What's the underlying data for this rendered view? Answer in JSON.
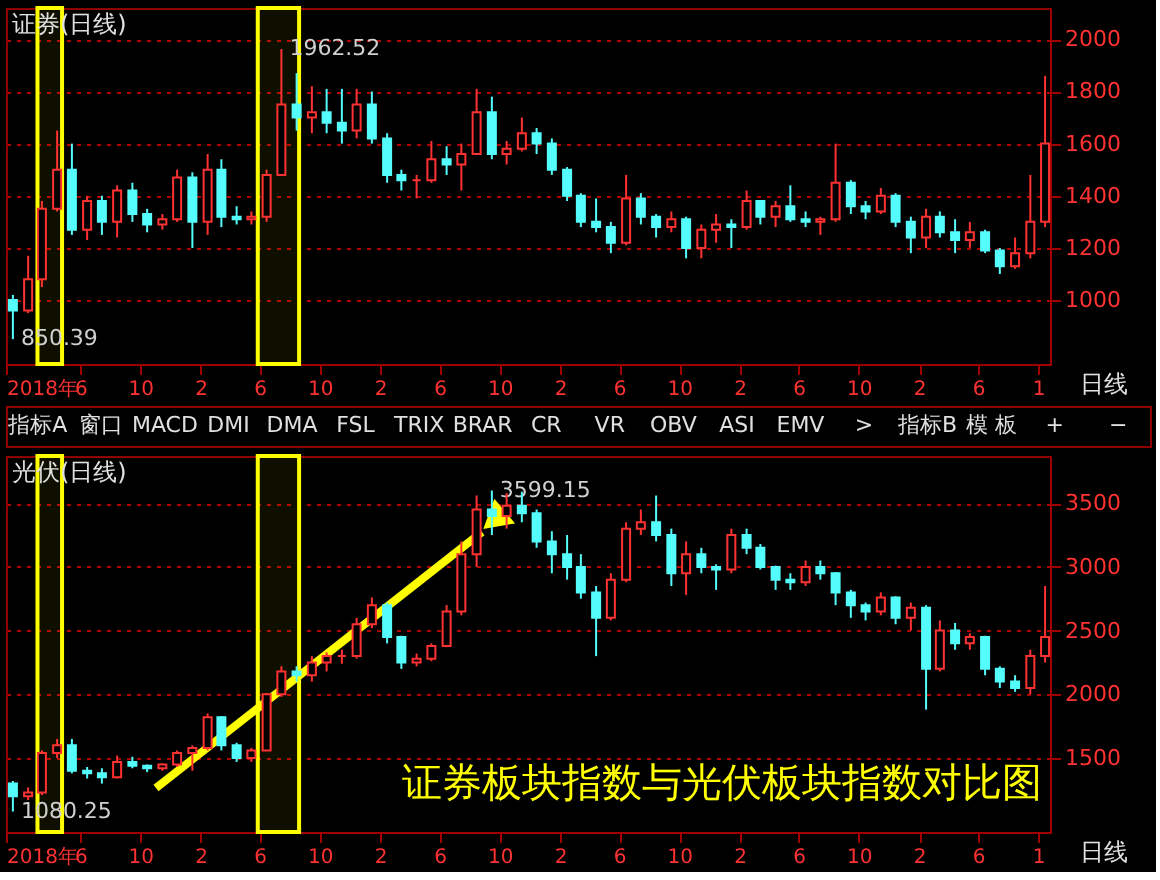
{
  "chart_data": [
    {
      "type": "candlestick",
      "title": "证券(日线)",
      "x": [
        "2018-01-15",
        "2018-02-15",
        "2018-03-15",
        "2018-04-15",
        "2018-05-15",
        "2018-06-15",
        "2018-07-15",
        "2018-08-15",
        "2018-09-15",
        "2018-10-15",
        "2018-11-15",
        "2018-12-15",
        "2019-01-15",
        "2019-02-15",
        "2019-03-15",
        "2019-04-15",
        "2019-05-15",
        "2019-06-15",
        "2019-07-15",
        "2019-08-15",
        "2019-09-15",
        "2019-10-15",
        "2019-11-15",
        "2019-12-15",
        "2020-01-15",
        "2020-02-15",
        "2020-03-15",
        "2020-04-15",
        "2020-05-15",
        "2020-06-15",
        "2020-07-15",
        "2020-08-15",
        "2020-09-15",
        "2020-10-15",
        "2020-11-15",
        "2020-12-15",
        "2021-01-15",
        "2021-02-15",
        "2021-03-15",
        "2021-04-15",
        "2021-05-15",
        "2021-06-15",
        "2021-07-15",
        "2021-08-15",
        "2021-09-15",
        "2021-10-15",
        "2021-11-15",
        "2021-12-15",
        "2022-01-15",
        "2022-02-15",
        "2022-03-15",
        "2022-04-15",
        "2022-05-15",
        "2022-06-15",
        "2022-07-15",
        "2022-08-15",
        "2022-09-15",
        "2022-10-15",
        "2022-11-15",
        "2022-12-15",
        "2023-01-15",
        "2023-02-15",
        "2023-03-15",
        "2023-04-15",
        "2023-05-15",
        "2023-06-15",
        "2023-07-15",
        "2023-08-15",
        "2023-09-15",
        "2023-10-15"
      ],
      "ohlc": [
        [
          1000,
          1020,
          850.39,
          960
        ],
        [
          960,
          1170,
          950,
          1080
        ],
        [
          1080,
          1380,
          1050,
          1350
        ],
        [
          1350,
          1650,
          1340,
          1500
        ],
        [
          1500,
          1600,
          1250,
          1270
        ],
        [
          1270,
          1400,
          1230,
          1380
        ],
        [
          1380,
          1400,
          1250,
          1300
        ],
        [
          1300,
          1440,
          1240,
          1420
        ],
        [
          1420,
          1450,
          1300,
          1330
        ],
        [
          1330,
          1350,
          1260,
          1290
        ],
        [
          1290,
          1330,
          1270,
          1310
        ],
        [
          1310,
          1500,
          1300,
          1470
        ],
        [
          1470,
          1490,
          1200,
          1300
        ],
        [
          1300,
          1560,
          1250,
          1500
        ],
        [
          1500,
          1540,
          1280,
          1320
        ],
        [
          1320,
          1360,
          1290,
          1310
        ],
        [
          1310,
          1340,
          1290,
          1320
        ],
        [
          1320,
          1500,
          1300,
          1480
        ],
        [
          1480,
          1962.52,
          1480,
          1750
        ],
        [
          1750,
          1870,
          1650,
          1700
        ],
        [
          1700,
          1820,
          1640,
          1720
        ],
        [
          1720,
          1810,
          1640,
          1680
        ],
        [
          1680,
          1810,
          1600,
          1650
        ],
        [
          1650,
          1810,
          1620,
          1750
        ],
        [
          1750,
          1800,
          1600,
          1620
        ],
        [
          1620,
          1640,
          1450,
          1480
        ],
        [
          1480,
          1500,
          1420,
          1460
        ],
        [
          1460,
          1480,
          1390,
          1460
        ],
        [
          1460,
          1610,
          1450,
          1540
        ],
        [
          1540,
          1590,
          1480,
          1520
        ],
        [
          1520,
          1600,
          1420,
          1560
        ],
        [
          1560,
          1810,
          1560,
          1720
        ],
        [
          1720,
          1780,
          1540,
          1560
        ],
        [
          1560,
          1610,
          1520,
          1580
        ],
        [
          1580,
          1700,
          1570,
          1640
        ],
        [
          1640,
          1660,
          1560,
          1600
        ],
        [
          1600,
          1620,
          1480,
          1500
        ],
        [
          1500,
          1510,
          1380,
          1400
        ],
        [
          1400,
          1410,
          1280,
          1300
        ],
        [
          1300,
          1390,
          1260,
          1280
        ],
        [
          1280,
          1300,
          1180,
          1220
        ],
        [
          1220,
          1480,
          1210,
          1390
        ],
        [
          1390,
          1410,
          1290,
          1320
        ],
        [
          1320,
          1330,
          1240,
          1280
        ],
        [
          1280,
          1340,
          1260,
          1310
        ],
        [
          1310,
          1320,
          1160,
          1200
        ],
        [
          1200,
          1290,
          1160,
          1270
        ],
        [
          1270,
          1330,
          1220,
          1290
        ],
        [
          1290,
          1310,
          1200,
          1280
        ],
        [
          1280,
          1420,
          1270,
          1380
        ],
        [
          1380,
          1380,
          1290,
          1320
        ],
        [
          1320,
          1380,
          1280,
          1360
        ],
        [
          1360,
          1440,
          1300,
          1310
        ],
        [
          1310,
          1340,
          1280,
          1300
        ],
        [
          1300,
          1320,
          1250,
          1310
        ],
        [
          1310,
          1600,
          1300,
          1450
        ],
        [
          1450,
          1460,
          1330,
          1360
        ],
        [
          1360,
          1380,
          1310,
          1340
        ],
        [
          1340,
          1430,
          1330,
          1400
        ],
        [
          1400,
          1410,
          1280,
          1300
        ],
        [
          1300,
          1320,
          1180,
          1240
        ],
        [
          1240,
          1350,
          1200,
          1320
        ],
        [
          1320,
          1340,
          1240,
          1260
        ],
        [
          1260,
          1310,
          1180,
          1230
        ],
        [
          1230,
          1300,
          1200,
          1260
        ],
        [
          1260,
          1270,
          1180,
          1190
        ],
        [
          1190,
          1200,
          1100,
          1130
        ],
        [
          1130,
          1240,
          1120,
          1180
        ],
        [
          1180,
          1480,
          1160,
          1300
        ],
        [
          1300,
          1860,
          1280,
          1600
        ]
      ],
      "xlim": [
        "2018-01-01",
        "2023-10-25"
      ],
      "xticks": [
        {
          "value": "2018-01-01",
          "label": "2018年"
        },
        {
          "value": "2018-06-01",
          "label": "6"
        },
        {
          "value": "2018-10-01",
          "label": "10"
        },
        {
          "value": "2019-02-01",
          "label": "2"
        },
        {
          "value": "2019-06-01",
          "label": "6"
        },
        {
          "value": "2019-10-01",
          "label": "10"
        },
        {
          "value": "2020-02-01",
          "label": "2"
        },
        {
          "value": "2020-06-01",
          "label": "6"
        },
        {
          "value": "2020-10-01",
          "label": "10"
        },
        {
          "value": "2021-02-01",
          "label": "2"
        },
        {
          "value": "2021-06-01",
          "label": "6"
        },
        {
          "value": "2021-10-01",
          "label": "10"
        },
        {
          "value": "2022-02-01",
          "label": "2"
        },
        {
          "value": "2022-06-01",
          "label": "6"
        },
        {
          "value": "2022-10-01",
          "label": "10"
        },
        {
          "value": "2023-02-01",
          "label": "2"
        },
        {
          "value": "2023-06-01",
          "label": "6"
        },
        {
          "value": "2023-10-01",
          "label": "1"
        }
      ],
      "ylim": [
        755,
        2120
      ],
      "yticks": [
        1000,
        1200,
        1400,
        1600,
        1800,
        2000
      ],
      "grid": "y",
      "bands": [
        {
          "axis": "x",
          "from": "2018-03-06",
          "to": "2018-04-25",
          "color": "#ffff00"
        },
        {
          "axis": "x",
          "from": "2019-05-28",
          "to": "2019-08-20",
          "color": "#ffff00"
        }
      ],
      "annotations": [
        {
          "text": "1962.52",
          "x": "2019-07-15",
          "y": 1962.52
        },
        {
          "text": "850.39",
          "x": "2018-01-15",
          "y": 850.39
        },
        "日线",
        "指标A",
        "窗口",
        "MACD",
        "DMI",
        "DMA",
        "FSL",
        "TRIX",
        "BRAR",
        "CR",
        "VR",
        "OBV",
        "ASI",
        "EMV",
        ">",
        "指标B",
        "模 板",
        "+",
        "−"
      ]
    },
    {
      "type": "candlestick",
      "title": "光伏(日线)",
      "x": [
        "2018-01-15",
        "2018-02-15",
        "2018-03-15",
        "2018-04-15",
        "2018-05-15",
        "2018-06-15",
        "2018-07-15",
        "2018-08-15",
        "2018-09-15",
        "2018-10-15",
        "2018-11-15",
        "2018-12-15",
        "2019-01-15",
        "2019-02-15",
        "2019-03-15",
        "2019-04-15",
        "2019-05-15",
        "2019-06-15",
        "2019-07-15",
        "2019-08-15",
        "2019-09-15",
        "2019-10-15",
        "2019-11-15",
        "2019-12-15",
        "2020-01-15",
        "2020-02-15",
        "2020-03-15",
        "2020-04-15",
        "2020-05-15",
        "2020-06-15",
        "2020-07-15",
        "2020-08-15",
        "2020-09-15",
        "2020-10-15",
        "2020-11-15",
        "2020-12-15",
        "2021-01-15",
        "2021-02-15",
        "2021-03-15",
        "2021-04-15",
        "2021-05-15",
        "2021-06-15",
        "2021-07-15",
        "2021-08-15",
        "2021-09-15",
        "2021-10-15",
        "2021-11-15",
        "2021-12-15",
        "2022-01-15",
        "2022-02-15",
        "2022-03-15",
        "2022-04-15",
        "2022-05-15",
        "2022-06-15",
        "2022-07-15",
        "2022-08-15",
        "2022-09-15",
        "2022-10-15",
        "2022-11-15",
        "2022-12-15",
        "2023-01-15",
        "2023-02-15",
        "2023-03-15",
        "2023-04-15",
        "2023-05-15",
        "2023-06-15",
        "2023-07-15",
        "2023-08-15",
        "2023-09-15",
        "2023-10-15"
      ],
      "ohlc": [
        [
          1300,
          1320,
          1080.25,
          1200
        ],
        [
          1200,
          1270,
          1170,
          1230
        ],
        [
          1230,
          1560,
          1210,
          1540
        ],
        [
          1540,
          1650,
          1500,
          1600
        ],
        [
          1600,
          1650,
          1380,
          1400
        ],
        [
          1400,
          1430,
          1340,
          1380
        ],
        [
          1380,
          1420,
          1300,
          1350
        ],
        [
          1350,
          1520,
          1340,
          1470
        ],
        [
          1470,
          1510,
          1420,
          1440
        ],
        [
          1440,
          1450,
          1390,
          1420
        ],
        [
          1420,
          1460,
          1400,
          1450
        ],
        [
          1450,
          1560,
          1430,
          1540
        ],
        [
          1540,
          1600,
          1400,
          1580
        ],
        [
          1580,
          1850,
          1560,
          1820
        ],
        [
          1820,
          1830,
          1560,
          1600
        ],
        [
          1600,
          1620,
          1470,
          1500
        ],
        [
          1500,
          1580,
          1470,
          1560
        ],
        [
          1560,
          2010,
          1560,
          2000
        ],
        [
          2000,
          2220,
          1980,
          2180
        ],
        [
          2180,
          2220,
          2100,
          2150
        ],
        [
          2150,
          2300,
          2100,
          2250
        ],
        [
          2250,
          2330,
          2180,
          2300
        ],
        [
          2300,
          2350,
          2240,
          2300
        ],
        [
          2300,
          2600,
          2280,
          2550
        ],
        [
          2550,
          2760,
          2520,
          2700
        ],
        [
          2700,
          2720,
          2400,
          2450
        ],
        [
          2450,
          2460,
          2200,
          2250
        ],
        [
          2250,
          2320,
          2220,
          2280
        ],
        [
          2280,
          2400,
          2260,
          2380
        ],
        [
          2380,
          2700,
          2370,
          2650
        ],
        [
          2650,
          3200,
          2620,
          3100
        ],
        [
          3100,
          3560,
          3000,
          3450
        ],
        [
          3450,
          3599.15,
          3250,
          3400
        ],
        [
          3400,
          3580,
          3300,
          3480
        ],
        [
          3480,
          3590,
          3350,
          3420
        ],
        [
          3420,
          3450,
          3150,
          3200
        ],
        [
          3200,
          3280,
          2950,
          3100
        ],
        [
          3100,
          3250,
          2900,
          3000
        ],
        [
          3000,
          3100,
          2750,
          2800
        ],
        [
          2800,
          2850,
          2300,
          2600
        ],
        [
          2600,
          2950,
          2580,
          2900
        ],
        [
          2900,
          3350,
          2880,
          3300
        ],
        [
          3300,
          3450,
          3250,
          3350
        ],
        [
          3350,
          3560,
          3200,
          3250
        ],
        [
          3250,
          3300,
          2850,
          2950
        ],
        [
          2950,
          3200,
          2780,
          3100
        ],
        [
          3100,
          3150,
          2950,
          3000
        ],
        [
          3000,
          3020,
          2820,
          2980
        ],
        [
          2980,
          3300,
          2950,
          3250
        ],
        [
          3250,
          3300,
          3100,
          3150
        ],
        [
          3150,
          3180,
          2980,
          3000
        ],
        [
          3000,
          3010,
          2820,
          2900
        ],
        [
          2900,
          2950,
          2820,
          2880
        ],
        [
          2880,
          3050,
          2850,
          3000
        ],
        [
          3000,
          3050,
          2900,
          2950
        ],
        [
          2950,
          2960,
          2700,
          2800
        ],
        [
          2800,
          2820,
          2600,
          2700
        ],
        [
          2700,
          2720,
          2580,
          2650
        ],
        [
          2650,
          2800,
          2620,
          2760
        ],
        [
          2760,
          2770,
          2550,
          2600
        ],
        [
          2600,
          2720,
          2500,
          2680
        ],
        [
          2680,
          2700,
          1880,
          2200
        ],
        [
          2200,
          2580,
          2180,
          2500
        ],
        [
          2500,
          2560,
          2350,
          2400
        ],
        [
          2400,
          2480,
          2350,
          2450
        ],
        [
          2450,
          2460,
          2150,
          2200
        ],
        [
          2200,
          2220,
          2050,
          2100
        ],
        [
          2100,
          2150,
          2020,
          2050
        ],
        [
          2050,
          2350,
          2000,
          2300
        ],
        [
          2300,
          2850,
          2250,
          2450
        ]
      ],
      "xlim": [
        "2018-01-01",
        "2023-10-25"
      ],
      "xticks": [
        {
          "value": "2018-01-01",
          "label": "2018年"
        },
        {
          "value": "2018-06-01",
          "label": "6"
        },
        {
          "value": "2018-10-01",
          "label": "10"
        },
        {
          "value": "2019-02-01",
          "label": "2"
        },
        {
          "value": "2019-06-01",
          "label": "6"
        },
        {
          "value": "2019-10-01",
          "label": "10"
        },
        {
          "value": "2020-02-01",
          "label": "2"
        },
        {
          "value": "2020-06-01",
          "label": "6"
        },
        {
          "value": "2020-10-01",
          "label": "10"
        },
        {
          "value": "2021-02-01",
          "label": "2"
        },
        {
          "value": "2021-06-01",
          "label": "6"
        },
        {
          "value": "2021-10-01",
          "label": "10"
        },
        {
          "value": "2022-02-01",
          "label": "2"
        },
        {
          "value": "2022-06-01",
          "label": "6"
        },
        {
          "value": "2022-10-01",
          "label": "10"
        },
        {
          "value": "2023-02-01",
          "label": "2"
        },
        {
          "value": "2023-06-01",
          "label": "6"
        },
        {
          "value": "2023-10-01",
          "label": "1"
        }
      ],
      "ylim": [
        920,
        3870
      ],
      "yticks": [
        1500,
        2000,
        2500,
        3000,
        3500
      ],
      "grid": "y",
      "bands": [
        {
          "axis": "x",
          "from": "2018-03-06",
          "to": "2018-04-25",
          "color": "#ffff00"
        },
        {
          "axis": "x",
          "from": "2019-05-28",
          "to": "2019-08-20",
          "color": "#ffff00"
        }
      ],
      "annotations": [
        {
          "text": "3599.15",
          "x": "2020-09-15",
          "y": 3599.15
        },
        {
          "text": "1080.25",
          "x": "2018-01-15",
          "y": 1080.25
        },
        "日线",
        "证券板块指数与光伏板块指数对比图"
      ]
    }
  ]
}
